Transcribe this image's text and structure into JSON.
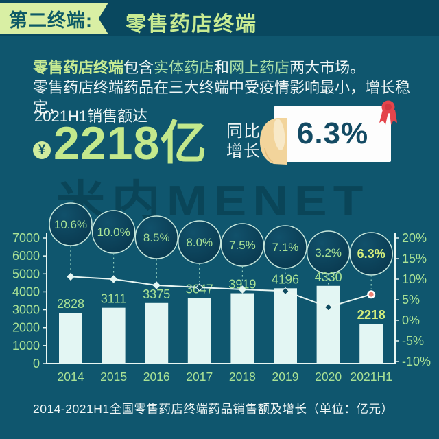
{
  "header": {
    "ribbon_label": "第二终端:",
    "title": "零售药店终端"
  },
  "intro": {
    "seg_bold": "零售药店终端",
    "seg_a": "包含",
    "seg_hl1": "实体药店",
    "seg_b": "和",
    "seg_hl2": "网上药店",
    "seg_c": "两大市场。",
    "line2": "零售药店终端药品在三大终端中受疫情影响最小，增长稳定，"
  },
  "highlight": {
    "period_label": "2021H1销售额达",
    "currency_symbol": "¥",
    "amount": "2218亿",
    "yoy_label_line1": "同比",
    "yoy_label_line2": "增长",
    "yoy_value": "6.3%"
  },
  "watermark": "米内MENET",
  "caption": "2014-2021H1全国零售药店终端药品销售额及增长（单位：亿元）",
  "chart_data": {
    "type": "bar+line combo",
    "title": "2014-2021H1全国零售药店终端药品销售额及增长（单位：亿元）",
    "categories": [
      "2014",
      "2015",
      "2016",
      "2017",
      "2018",
      "2019",
      "2020",
      "2021H1"
    ],
    "series": [
      {
        "name": "药品销售额(亿元)",
        "type": "bar",
        "values": [
          2828,
          3111,
          3375,
          3647,
          3919,
          4196,
          4330,
          2218
        ],
        "labels": [
          "2828",
          "3111",
          "3375",
          "3647",
          "3919",
          "4196",
          "4330",
          "2218"
        ]
      },
      {
        "name": "同比增长率",
        "type": "line",
        "values": [
          10.6,
          10.0,
          8.5,
          8.0,
          7.5,
          7.1,
          3.2,
          6.3
        ],
        "labels": [
          "10.6%",
          "10.0%",
          "8.5%",
          "8.0%",
          "7.5%",
          "7.1%",
          "3.2%",
          "6.3%"
        ]
      }
    ],
    "left_axis": {
      "min": 0,
      "max": 7000,
      "step": 1000,
      "ticks": [
        "7000",
        "6000",
        "5000",
        "4000",
        "3000",
        "2000",
        "1000",
        "0"
      ]
    },
    "right_axis": {
      "min": -10,
      "max": 20,
      "step": 5,
      "ticks": [
        "20%",
        "15%",
        "10%",
        "5%",
        "0%",
        "-5%",
        "-10%"
      ]
    },
    "highlight_index": 7,
    "grid": false,
    "legend": "none"
  },
  "colors": {
    "background": "#0F566E",
    "header_band": "#09485F",
    "ribbon_green": "#D9EFA4",
    "accent_green": "#C9EC92",
    "pale_green": "#A8DEA6",
    "label_green": "#A9E295",
    "highlight_gold": "#D6F07C",
    "bar_fill": "#E3F6F3",
    "axis_line": "#E9F7F3",
    "circle_stroke": "#C6E6DB",
    "circle_fill_top": "#11516B",
    "circle_fill_bottom": "#09384E",
    "dash_line": "#8FCCBB",
    "marker_dark": "#0E4A5F",
    "marker_pink": "#EE8376",
    "white_text": "#EFF6F5",
    "dark_text": "#134A63",
    "rosette_red": "#E4454C",
    "hand_skin": "#F2D49B",
    "thumb_skin": "#F8E9C8"
  }
}
